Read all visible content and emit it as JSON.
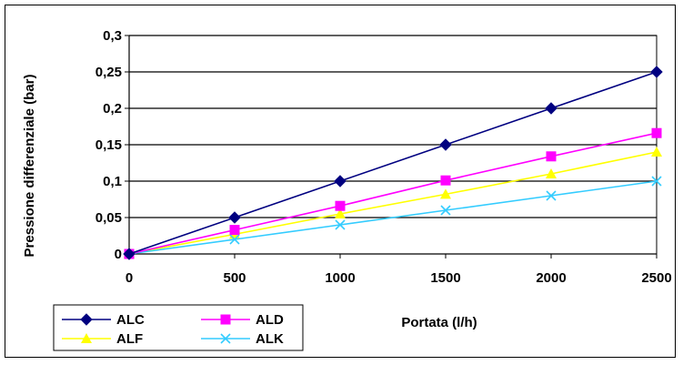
{
  "chart_data": {
    "type": "line",
    "title": "",
    "xlabel": "Portata (l/h)",
    "ylabel": "Pressione differenziale (bar)",
    "xlim": [
      0,
      2500
    ],
    "ylim": [
      0,
      0.3
    ],
    "x_ticks": [
      0,
      500,
      1000,
      1500,
      2000,
      2500
    ],
    "x_tick_labels": [
      "0",
      "500",
      "1000",
      "1500",
      "2000",
      "2500"
    ],
    "y_ticks": [
      0,
      0.05,
      0.1,
      0.15,
      0.2,
      0.25,
      0.3
    ],
    "y_tick_labels": [
      "0",
      "0,05",
      "0,1",
      "0,15",
      "0,2",
      "0,25",
      "0,3"
    ],
    "grid": "horizontal",
    "legend_position": "bottom-left",
    "series": [
      {
        "name": "ALC",
        "color": "#000080",
        "marker": "diamond",
        "x": [
          0,
          500,
          1000,
          1500,
          2000,
          2500
        ],
        "y": [
          0,
          0.05,
          0.1,
          0.15,
          0.2,
          0.25
        ]
      },
      {
        "name": "ALD",
        "color": "#ff00ff",
        "marker": "square",
        "x": [
          0,
          500,
          1000,
          1500,
          2000,
          2500
        ],
        "y": [
          0,
          0.033,
          0.066,
          0.101,
          0.134,
          0.166
        ]
      },
      {
        "name": "ALF",
        "color": "#ffff00",
        "marker": "triangle",
        "x": [
          0,
          500,
          1000,
          1500,
          2000,
          2500
        ],
        "y": [
          0,
          0.027,
          0.055,
          0.082,
          0.11,
          0.14
        ]
      },
      {
        "name": "ALK",
        "color": "#33ccff",
        "marker": "x",
        "x": [
          0,
          500,
          1000,
          1500,
          2000,
          2500
        ],
        "y": [
          0,
          0.02,
          0.04,
          0.06,
          0.08,
          0.1
        ]
      }
    ]
  }
}
